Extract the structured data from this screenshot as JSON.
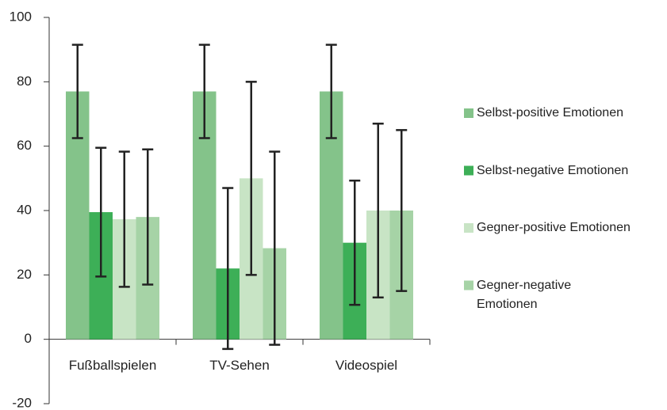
{
  "chart_data": {
    "type": "bar",
    "categories": [
      "Fußballspielen",
      "TV-Sehen",
      "Videospiel"
    ],
    "series": [
      {
        "name": "Selbst-positive Emotionen",
        "color": "#84c38a",
        "values": [
          77,
          77,
          77
        ],
        "errors": [
          14.5,
          14.5,
          14.5
        ]
      },
      {
        "name": "Selbst-negative Emotionen",
        "color": "#3daf57",
        "values": [
          39.5,
          22,
          30
        ],
        "errors": [
          20,
          25,
          19.3
        ]
      },
      {
        "name": "Gegner-positive Emotionen",
        "color": "#c8e4c5",
        "values": [
          37.3,
          50,
          40
        ],
        "errors": [
          21,
          30,
          27
        ]
      },
      {
        "name": "Gegner-negative Emotionen",
        "color": "#a6d3a6",
        "values": [
          38,
          28.3,
          40
        ],
        "errors": [
          21,
          30,
          25
        ]
      }
    ],
    "ylim": [
      -20,
      100
    ],
    "yticks": [
      -20,
      0,
      20,
      40,
      60,
      80,
      100
    ],
    "grid": false,
    "legend": "right"
  }
}
